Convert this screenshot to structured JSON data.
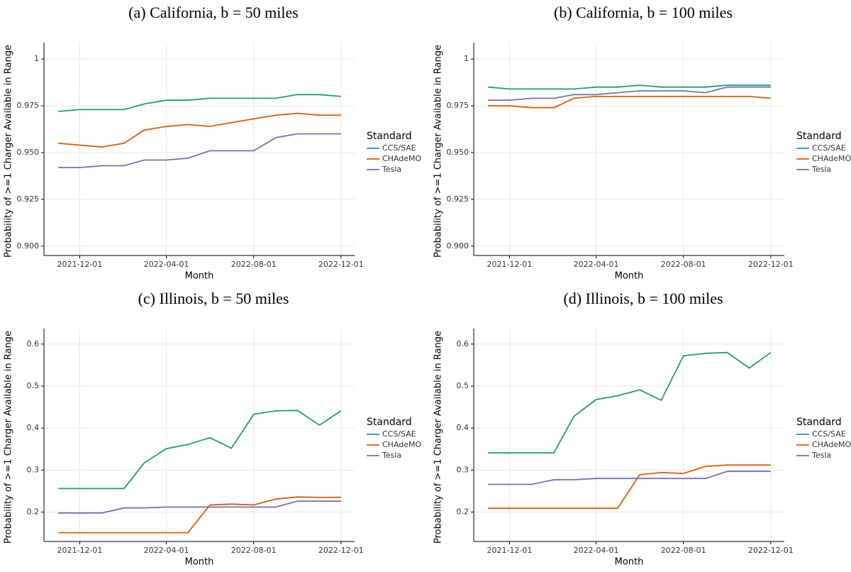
{
  "chart_data": [
    {
      "type": "line",
      "title": "(a) California, b = 50 miles",
      "x_label": "Month",
      "y_label": "Probability of >=1 Charger Available in Range",
      "legend_title": "Standard",
      "legend": "right",
      "grid": true,
      "x": [
        "2021-11-01",
        "2021-12-01",
        "2022-01-01",
        "2022-02-01",
        "2022-03-01",
        "2022-04-01",
        "2022-05-01",
        "2022-06-01",
        "2022-07-01",
        "2022-08-01",
        "2022-09-01",
        "2022-10-01",
        "2022-11-01",
        "2022-12-01"
      ],
      "xlim": [
        "2021-10-12",
        "2022-12-20"
      ],
      "xticks": [
        "2021-12-01",
        "2022-04-01",
        "2022-08-01",
        "2022-12-01"
      ],
      "ylim": [
        0.895,
        1.005
      ],
      "yticks": [
        {
          "value": 0.9,
          "label": "0.900"
        },
        {
          "value": 0.925,
          "label": "0.925"
        },
        {
          "value": 0.95,
          "label": "0.950"
        },
        {
          "value": 0.975,
          "label": "0.975"
        },
        1
      ],
      "series": [
        {
          "name": "CCS/SAE",
          "color": "#1b9e77",
          "values": [
            0.972,
            0.973,
            0.973,
            0.973,
            0.976,
            0.978,
            0.978,
            0.979,
            0.979,
            0.979,
            0.979,
            0.981,
            0.981,
            0.98
          ]
        },
        {
          "name": "CHAdeMO",
          "color": "#d95f02",
          "values": [
            0.955,
            0.954,
            0.953,
            0.955,
            0.962,
            0.964,
            0.965,
            0.964,
            0.966,
            0.968,
            0.97,
            0.971,
            0.97,
            0.97
          ]
        },
        {
          "name": "Tesla",
          "color": "#7570b3",
          "values": [
            0.942,
            0.942,
            0.943,
            0.943,
            0.946,
            0.946,
            0.947,
            0.951,
            0.951,
            0.951,
            0.958,
            0.96,
            0.96,
            0.96
          ]
        }
      ]
    },
    {
      "type": "line",
      "title": "(b) California, b = 100 miles",
      "x_label": "Month",
      "y_label": "Probability of >=1 Charger Available in Range",
      "legend_title": "Standard",
      "legend": "right",
      "grid": true,
      "x": [
        "2021-11-01",
        "2021-12-01",
        "2022-01-01",
        "2022-02-01",
        "2022-03-01",
        "2022-04-01",
        "2022-05-01",
        "2022-06-01",
        "2022-07-01",
        "2022-08-01",
        "2022-09-01",
        "2022-10-01",
        "2022-11-01",
        "2022-12-01"
      ],
      "xlim": [
        "2021-10-12",
        "2022-12-20"
      ],
      "xticks": [
        "2021-12-01",
        "2022-04-01",
        "2022-08-01",
        "2022-12-01"
      ],
      "ylim": [
        0.895,
        1.005
      ],
      "yticks": [
        {
          "value": 0.9,
          "label": "0.900"
        },
        {
          "value": 0.925,
          "label": "0.925"
        },
        {
          "value": 0.95,
          "label": "0.950"
        },
        {
          "value": 0.975,
          "label": "0.975"
        },
        1
      ],
      "series": [
        {
          "name": "CCS/SAE",
          "color": "#1b9e77",
          "values": [
            0.985,
            0.984,
            0.984,
            0.984,
            0.984,
            0.985,
            0.985,
            0.986,
            0.985,
            0.985,
            0.985,
            0.986,
            0.986,
            0.986
          ]
        },
        {
          "name": "CHAdeMO",
          "color": "#d95f02",
          "values": [
            0.975,
            0.975,
            0.974,
            0.974,
            0.979,
            0.98,
            0.98,
            0.98,
            0.98,
            0.98,
            0.98,
            0.98,
            0.98,
            0.979
          ]
        },
        {
          "name": "Tesla",
          "color": "#7570b3",
          "values": [
            0.978,
            0.978,
            0.979,
            0.979,
            0.981,
            0.981,
            0.982,
            0.983,
            0.983,
            0.983,
            0.982,
            0.985,
            0.985,
            0.985
          ]
        }
      ]
    },
    {
      "type": "line",
      "title": "(c) Illinois, b = 50 miles",
      "x_label": "Month",
      "y_label": "Probability of >=1 Charger Available in Range",
      "legend_title": "Standard",
      "legend": "right",
      "grid": true,
      "x": [
        "2021-11-01",
        "2021-12-01",
        "2022-01-01",
        "2022-02-01",
        "2022-03-01",
        "2022-04-01",
        "2022-05-01",
        "2022-06-01",
        "2022-07-01",
        "2022-08-01",
        "2022-09-01",
        "2022-10-01",
        "2022-11-01",
        "2022-12-01"
      ],
      "xlim": [
        "2021-10-12",
        "2022-12-20"
      ],
      "xticks": [
        "2021-12-01",
        "2022-04-01",
        "2022-08-01",
        "2022-12-01"
      ],
      "ylim": [
        0.13,
        0.62
      ],
      "yticks": [
        0.2,
        0.3,
        0.4,
        0.5,
        0.6
      ],
      "series": [
        {
          "name": "CCS/SAE",
          "color": "#1b9e77",
          "values": [
            0.256,
            0.256,
            0.256,
            0.256,
            0.317,
            0.351,
            0.361,
            0.377,
            0.352,
            0.433,
            0.441,
            0.442,
            0.407,
            0.441
          ]
        },
        {
          "name": "CHAdeMO",
          "color": "#d95f02",
          "values": [
            0.151,
            0.151,
            0.151,
            0.151,
            0.151,
            0.151,
            0.151,
            0.217,
            0.219,
            0.217,
            0.231,
            0.236,
            0.235,
            0.235
          ]
        },
        {
          "name": "Tesla",
          "color": "#7570b3",
          "values": [
            0.198,
            0.198,
            0.198,
            0.21,
            0.21,
            0.212,
            0.212,
            0.212,
            0.212,
            0.212,
            0.212,
            0.226,
            0.226,
            0.226
          ]
        }
      ]
    },
    {
      "type": "line",
      "title": "(d) Illinois, b = 100 miles",
      "x_label": "Month",
      "y_label": "Probability of >=1 Charger Available in Range",
      "legend_title": "Standard",
      "legend": "right",
      "grid": true,
      "x": [
        "2021-11-01",
        "2021-12-01",
        "2022-01-01",
        "2022-02-01",
        "2022-03-01",
        "2022-04-01",
        "2022-05-01",
        "2022-06-01",
        "2022-07-01",
        "2022-08-01",
        "2022-09-01",
        "2022-10-01",
        "2022-11-01",
        "2022-12-01"
      ],
      "xlim": [
        "2021-10-12",
        "2022-12-20"
      ],
      "xticks": [
        "2021-12-01",
        "2022-04-01",
        "2022-08-01",
        "2022-12-01"
      ],
      "ylim": [
        0.13,
        0.62
      ],
      "yticks": [
        0.2,
        0.3,
        0.4,
        0.5,
        0.6
      ],
      "series": [
        {
          "name": "CCS/SAE",
          "color": "#1b9e77",
          "values": [
            0.341,
            0.341,
            0.341,
            0.341,
            0.428,
            0.468,
            0.477,
            0.491,
            0.466,
            0.572,
            0.578,
            0.58,
            0.543,
            0.58
          ]
        },
        {
          "name": "CHAdeMO",
          "color": "#d95f02",
          "values": [
            0.209,
            0.209,
            0.209,
            0.209,
            0.209,
            0.209,
            0.209,
            0.289,
            0.294,
            0.292,
            0.309,
            0.312,
            0.312,
            0.312
          ]
        },
        {
          "name": "Tesla",
          "color": "#7570b3",
          "values": [
            0.266,
            0.266,
            0.266,
            0.277,
            0.277,
            0.28,
            0.28,
            0.28,
            0.28,
            0.28,
            0.28,
            0.297,
            0.297,
            0.297
          ]
        }
      ]
    }
  ]
}
